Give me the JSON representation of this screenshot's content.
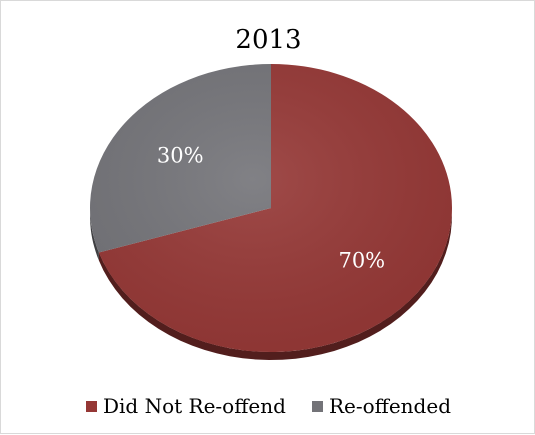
{
  "chart_data": {
    "type": "pie",
    "title": "2013",
    "slices": [
      {
        "label": "Did Not Re-offend",
        "value": 70,
        "display": "70%",
        "color": "#953735"
      },
      {
        "label": "Re-offended",
        "value": 30,
        "display": "30%",
        "color": "#737378"
      }
    ],
    "legend_position": "bottom",
    "style": "3d"
  }
}
